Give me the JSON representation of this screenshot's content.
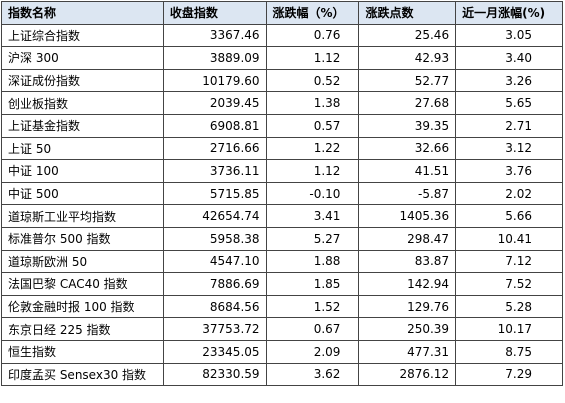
{
  "table": {
    "header": [
      "指数名称",
      "收盘指数",
      "涨跌幅（%）",
      "涨跌点数",
      "近一月涨幅(%)"
    ],
    "rows": [
      [
        "上证综合指数",
        "3367.46",
        "0.76",
        "25.46",
        "3.05"
      ],
      [
        "沪深 300",
        "3889.09",
        "1.12",
        "42.93",
        "3.40"
      ],
      [
        "深证成份指数",
        "10179.60",
        "0.52",
        "52.77",
        "3.26"
      ],
      [
        "创业板指数",
        "2039.45",
        "1.38",
        "27.68",
        "5.65"
      ],
      [
        "上证基金指数",
        "6908.81",
        "0.57",
        "39.35",
        "2.71"
      ],
      [
        "上证 50",
        "2716.66",
        "1.22",
        "32.66",
        "3.12"
      ],
      [
        "中证 100",
        "3736.11",
        "1.12",
        "41.51",
        "3.76"
      ],
      [
        "中证 500",
        "5715.85",
        "-0.10",
        "-5.87",
        "2.02"
      ],
      [
        "道琼斯工业平均指数",
        "42654.74",
        "3.41",
        "1405.36",
        "5.66"
      ],
      [
        "标准普尔 500 指数",
        "5958.38",
        "5.27",
        "298.47",
        "10.41"
      ],
      [
        "道琼斯欧洲 50",
        "4547.10",
        "1.88",
        "83.87",
        "7.12"
      ],
      [
        "法国巴黎 CAC40 指数",
        "7886.69",
        "1.85",
        "142.94",
        "7.52"
      ],
      [
        "伦敦金融时报 100 指数",
        "8684.56",
        "1.52",
        "129.76",
        "5.28"
      ],
      [
        "东京日经 225 指数",
        "37753.72",
        "0.67",
        "250.39",
        "10.17"
      ],
      [
        "恒生指数",
        "23345.05",
        "2.09",
        "477.31",
        "8.75"
      ],
      [
        "印度孟买 Sensex30 指数",
        "82330.59",
        "3.62",
        "2876.12",
        "7.29"
      ]
    ]
  }
}
